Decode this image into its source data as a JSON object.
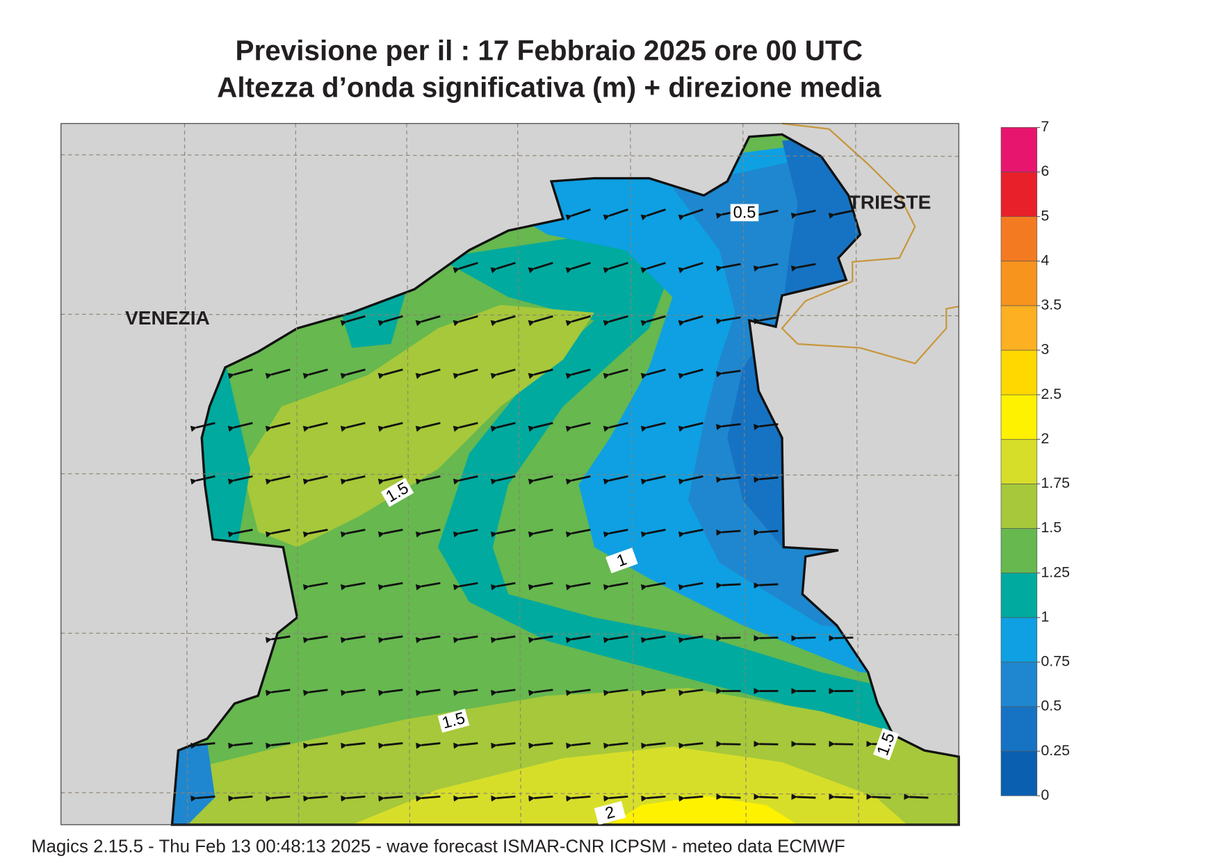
{
  "header": {
    "title_line1": "Previsione per il  :  17  Febbraio 2025   ore 00 UTC",
    "title_line2": "Altezza d’onda significativa (m) + direzione media"
  },
  "map": {
    "cities": [
      "VENEZIA",
      "TRIESTE"
    ],
    "contour_labels": [
      0.5,
      1.5,
      1,
      1.5,
      2,
      1.5
    ]
  },
  "colorbar": {
    "ticks": [
      0,
      0.25,
      0.5,
      0.75,
      1,
      1.25,
      1.5,
      1.75,
      2,
      2.5,
      3,
      3.5,
      4,
      5,
      6,
      7
    ],
    "colors": [
      "#0b5fb0",
      "#1673c3",
      "#1f87cf",
      "#0ea0e2",
      "#00aa9e",
      "#66b84f",
      "#a6c83a",
      "#d7de2a",
      "#fff200",
      "#ffd800",
      "#fcb022",
      "#f7941d",
      "#f47a22",
      "#e8202a",
      "#e8156e"
    ]
  },
  "footer": "Magics 2.15.5 - Thu Feb 13 00:48:13 2025 - wave forecast  ISMAR-CNR  ICPSM - meteo data   ECMWF"
}
